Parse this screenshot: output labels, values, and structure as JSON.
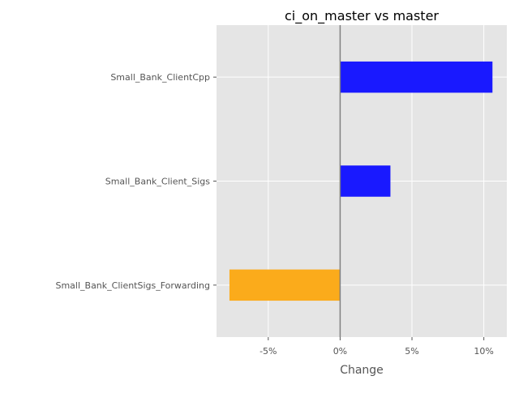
{
  "chart_data": {
    "type": "bar",
    "orientation": "horizontal",
    "title": "ci_on_master vs master",
    "xlabel": "Change",
    "ylabel": "",
    "categories": [
      "Small_Bank_ClientCpp",
      "Small_Bank_Client_Sigs",
      "Small_Bank_ClientSigs_Forwarding"
    ],
    "values": [
      10.6,
      3.5,
      -7.7
    ],
    "value_unit": "%",
    "xlim": [
      -8.6,
      11.6
    ],
    "xticks": [
      -5,
      0,
      5,
      10
    ],
    "xtick_labels": [
      "-5%",
      "0%",
      "5%",
      "10%"
    ],
    "grid": true,
    "legend": "none",
    "colors": {
      "positive": "#1919ff",
      "negative": "#fbab1b",
      "background": "#e5e5e5",
      "grid": "#ffffff",
      "zero_line": "#808080",
      "tick_text": "#555555",
      "label_text": "#555555",
      "title_text": "#000000"
    }
  }
}
